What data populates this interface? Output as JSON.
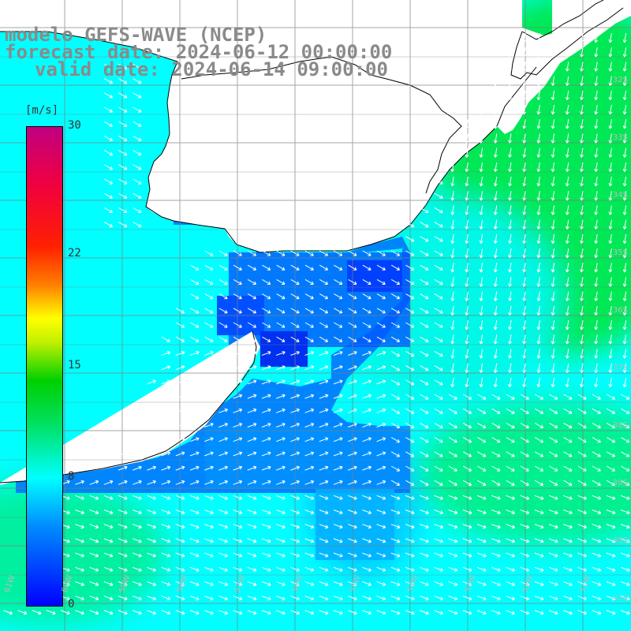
{
  "header": {
    "line1": "modelo GEFS-WAVE (NCEP)",
    "line2": "forecast date: 2024-06-12 00:00:00",
    "line3": "valid date: 2024-06-14 09:00:00"
  },
  "colorbar": {
    "unit": "[m/s]",
    "min": 0,
    "max": 30,
    "ticks": [
      {
        "value": 0,
        "label": "0"
      },
      {
        "value": 8,
        "label": "8"
      },
      {
        "value": 15,
        "label": "15"
      },
      {
        "value": 22,
        "label": "22"
      },
      {
        "value": 30,
        "label": "30"
      }
    ]
  },
  "grid_labels": {
    "lat": [
      "32S",
      "33S",
      "34S",
      "35S",
      "36S",
      "37S",
      "38S",
      "39S",
      "40S",
      "41S"
    ],
    "lon": [
      "61W",
      "60W",
      "59W",
      "58W",
      "57W",
      "56W",
      "55W",
      "54W",
      "53W",
      "52W",
      "51W"
    ]
  },
  "colors": {
    "land": "#ffffff",
    "coast": "#000000",
    "grid": "#7f7f7f",
    "arrows": "#ffffff",
    "label": "#8a8a8a"
  }
}
